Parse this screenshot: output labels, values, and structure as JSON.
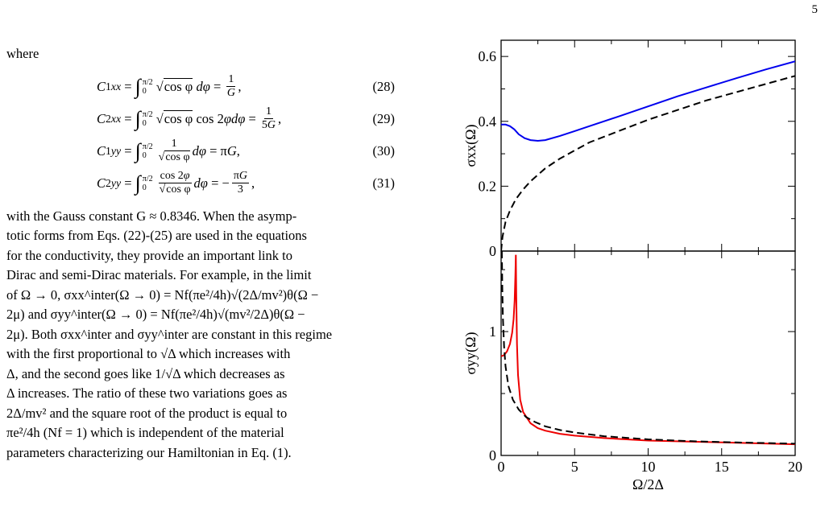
{
  "page_number": "5",
  "text": {
    "where": "where",
    "equations": [
      {
        "lhs": "C1xx",
        "integrand": "√cos φ dφ",
        "rhs": "1/G",
        "number": "(28)"
      },
      {
        "lhs": "C2xx",
        "integrand": "√cos φ cos 2φ dφ",
        "rhs": "1/5G",
        "number": "(29)"
      },
      {
        "lhs": "C1yy",
        "integrand": "1/√cos φ dφ",
        "rhs": "πG",
        "number": "(30)"
      },
      {
        "lhs": "C2yy",
        "integrand": "cos 2φ/√cos φ dφ",
        "rhs": "−πG/3",
        "number": "(31)"
      }
    ],
    "paragraph_lines": [
      "with the Gauss constant G ≈ 0.8346. When the asymp-",
      "totic forms from Eqs. (22)-(25) are used in the equations",
      "for the conductivity, they provide an important link to",
      "Dirac and semi-Dirac materials. For example, in the limit",
      "of Ω → 0, σxx^inter(Ω → 0) = Nf(πe²/4h)√(2Δ/mv²)θ(Ω −",
      "2μ) and σyy^inter(Ω → 0) = Nf(πe²/4h)√(mv²/2Δ)θ(Ω −",
      "2μ). Both σxx^inter and σyy^inter are constant in this regime",
      "with the first proportional to √Δ which increases with",
      "Δ, and the second goes like 1/√Δ which decreases as",
      "Δ increases. The ratio of these two variations goes as",
      "2Δ/mv² and the square root of the product is equal to",
      "πe²/4h (Nf = 1) which is independent of the material",
      "parameters characterizing our Hamiltonian in Eq. (1)."
    ]
  },
  "chart_data": [
    {
      "type": "line",
      "panel": "top",
      "ylabel": "σxx(Ω)",
      "xlim": [
        0,
        20
      ],
      "ylim": [
        0,
        0.65
      ],
      "yticks": [
        0,
        0.2,
        0.4,
        0.6
      ],
      "ytick_labels": [
        "0",
        "0.2",
        "0.4",
        "0.6"
      ],
      "series": [
        {
          "color": "#0000ee",
          "style": "solid",
          "x": [
            0,
            0.3,
            0.6,
            0.9,
            1.2,
            1.6,
            2.0,
            2.5,
            3,
            4,
            5,
            6,
            8,
            10,
            12,
            14,
            16,
            18,
            20
          ],
          "y": [
            0.39,
            0.39,
            0.385,
            0.375,
            0.36,
            0.348,
            0.342,
            0.34,
            0.342,
            0.355,
            0.37,
            0.385,
            0.415,
            0.446,
            0.477,
            0.505,
            0.533,
            0.56,
            0.585
          ]
        },
        {
          "color": "#000000",
          "style": "dashed",
          "x": [
            0,
            0.1,
            0.3,
            0.6,
            1,
            1.5,
            2,
            3,
            4,
            5,
            6,
            8,
            10,
            12,
            14,
            16,
            18,
            20
          ],
          "y": [
            0,
            0.045,
            0.09,
            0.125,
            0.16,
            0.19,
            0.215,
            0.255,
            0.285,
            0.31,
            0.335,
            0.37,
            0.405,
            0.435,
            0.465,
            0.49,
            0.515,
            0.54
          ]
        }
      ]
    },
    {
      "type": "line",
      "panel": "bottom",
      "ylabel": "σyy(Ω)",
      "xlabel": "Ω/2Δ",
      "xlim": [
        0,
        20
      ],
      "ylim": [
        0,
        1.65
      ],
      "xticks": [
        0,
        5,
        10,
        15,
        20
      ],
      "xtick_labels": [
        "0",
        "5",
        "10",
        "15",
        "20"
      ],
      "yticks": [
        0,
        1
      ],
      "ytick_labels": [
        "0",
        "1"
      ],
      "series": [
        {
          "color": "#ee0000",
          "style": "solid",
          "x": [
            0,
            0.2,
            0.4,
            0.6,
            0.75,
            0.85,
            0.92,
            0.97,
            1.0,
            1.03,
            1.08,
            1.15,
            1.3,
            1.5,
            2,
            2.5,
            3,
            4,
            5,
            7,
            10,
            15,
            20
          ],
          "y": [
            0.8,
            0.81,
            0.84,
            0.9,
            0.99,
            1.1,
            1.25,
            1.45,
            1.62,
            1.3,
            0.9,
            0.65,
            0.45,
            0.35,
            0.26,
            0.22,
            0.2,
            0.175,
            0.16,
            0.14,
            0.12,
            0.105,
            0.09
          ]
        },
        {
          "color": "#000000",
          "style": "dashed",
          "x": [
            0.05,
            0.08,
            0.12,
            0.2,
            0.3,
            0.5,
            0.8,
            1.2,
            1.7,
            2.3,
            3,
            4,
            5,
            7,
            10,
            13,
            16,
            20
          ],
          "y": [
            1.65,
            1.35,
            1.12,
            0.88,
            0.72,
            0.56,
            0.45,
            0.37,
            0.31,
            0.27,
            0.235,
            0.205,
            0.185,
            0.155,
            0.13,
            0.115,
            0.105,
            0.095
          ]
        }
      ]
    }
  ]
}
